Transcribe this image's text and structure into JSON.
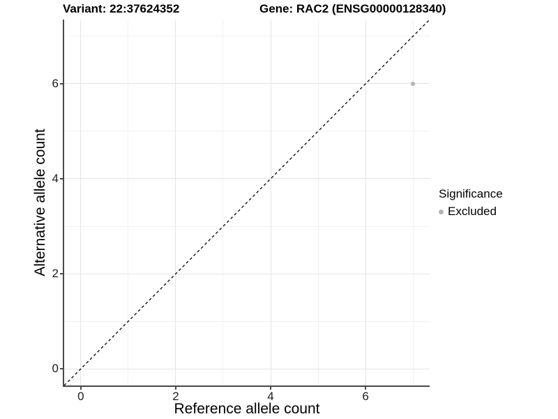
{
  "figure": {
    "title_left": "Variant: 22:37624352",
    "title_right": "Gene: RAC2 (ENSG00000128340)"
  },
  "chart_data": {
    "type": "scatter",
    "title": "Variant: 22:37624352   Gene: RAC2 (ENSG00000128340)",
    "xlabel": "Reference allele count",
    "ylabel": "Alternative allele count",
    "xlim": [
      -0.35,
      7.35
    ],
    "ylim": [
      -0.35,
      7.35
    ],
    "x_major_ticks": [
      0,
      2,
      4,
      6
    ],
    "y_major_ticks": [
      0,
      2,
      4,
      6
    ],
    "x_minor_gridlines": [
      1,
      3,
      5,
      7
    ],
    "y_minor_gridlines": [
      1,
      3,
      5,
      7
    ],
    "grid": "on",
    "points": [
      {
        "x": 7,
        "y": 6,
        "significance": "Excluded"
      }
    ],
    "point_radius_px": 3,
    "identity_line": {
      "style": "dashed",
      "slope": 1,
      "intercept": 0
    },
    "legend": {
      "title": "Significance",
      "position": "right",
      "entries": [
        {
          "label": "Excluded",
          "color": "#b4b4b4"
        }
      ]
    },
    "colors": {
      "point": "#b4b4b4",
      "grid_major": "#e4e4e4",
      "grid_minor": "#f1f1f1",
      "axis": "#484848",
      "identity_line": "#000000",
      "background": "#ffffff"
    }
  }
}
